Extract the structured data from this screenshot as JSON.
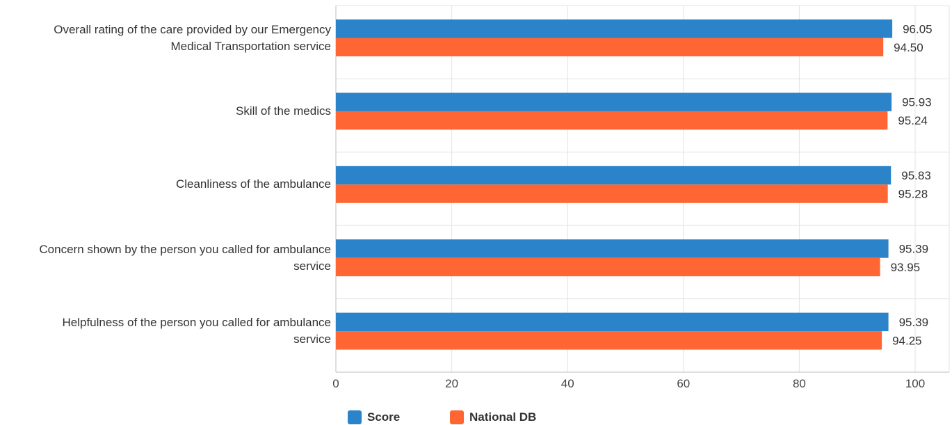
{
  "chart_data": {
    "type": "bar",
    "orientation": "horizontal",
    "categories": [
      [
        "Overall rating of the care provided by our Emergency",
        "Medical Transportation service"
      ],
      [
        "Skill of the medics"
      ],
      [
        "Cleanliness of the ambulance"
      ],
      [
        "Concern shown by the person you called for ambulance",
        "service"
      ],
      [
        "Helpfulness of the person you called for ambulance",
        "service"
      ]
    ],
    "series": [
      {
        "name": "Score",
        "color": "#2B83C9",
        "values": [
          96.05,
          95.93,
          95.83,
          95.39,
          95.39
        ],
        "labels": [
          "96.05",
          "95.93",
          "95.83",
          "95.39",
          "95.39"
        ]
      },
      {
        "name": "National DB",
        "color": "#FF6633",
        "values": [
          94.5,
          95.24,
          95.28,
          93.95,
          94.25
        ],
        "labels": [
          "94.50",
          "95.24",
          "95.28",
          "93.95",
          "94.25"
        ]
      }
    ],
    "xlim": [
      0,
      100
    ],
    "xticks": [
      0,
      20,
      40,
      60,
      80,
      100
    ],
    "xtick_labels": [
      "0",
      "20",
      "40",
      "60",
      "80",
      "100"
    ],
    "grid": true,
    "legend_position": "bottom"
  }
}
